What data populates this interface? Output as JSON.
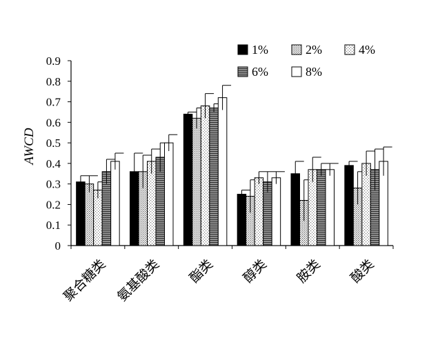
{
  "chart_data": {
    "type": "bar",
    "title": "",
    "xlabel": "",
    "ylabel": "AWCD",
    "ylim": [
      0,
      0.9
    ],
    "yticks": [
      "0",
      "0.1",
      "0.2",
      "0.3",
      "0.4",
      "0.5",
      "0.6",
      "0.7",
      "0.8",
      "0.9"
    ],
    "categories": [
      "聚合糖类",
      "氨基酸类",
      "酯类",
      "醇类",
      "胺类",
      "酸类"
    ],
    "legend_position": "top-right",
    "grid": false,
    "series": [
      {
        "name": "1%",
        "fill": "black",
        "values": [
          0.31,
          0.36,
          0.64,
          0.25,
          0.35,
          0.39
        ],
        "errors": [
          0.03,
          0.09,
          0.01,
          0.02,
          0.06,
          0.02
        ]
      },
      {
        "name": "2%",
        "fill": "dots-dense",
        "values": [
          0.3,
          0.36,
          0.62,
          0.24,
          0.22,
          0.28
        ],
        "errors": [
          0.04,
          0.08,
          0.05,
          0.08,
          0.1,
          0.08
        ]
      },
      {
        "name": "4%",
        "fill": "dots-sparse",
        "values": [
          0.27,
          0.41,
          0.68,
          0.33,
          0.37,
          0.4
        ],
        "errors": [
          0.04,
          0.06,
          0.06,
          0.03,
          0.06,
          0.06
        ]
      },
      {
        "name": "6%",
        "fill": "horizontal-lines",
        "values": [
          0.36,
          0.43,
          0.67,
          0.31,
          0.37,
          0.37
        ],
        "errors": [
          0.06,
          0.07,
          0.02,
          0.05,
          0.03,
          0.1
        ]
      },
      {
        "name": "8%",
        "fill": "white",
        "values": [
          0.41,
          0.5,
          0.72,
          0.33,
          0.37,
          0.41
        ],
        "errors": [
          0.04,
          0.04,
          0.06,
          0.03,
          0.03,
          0.07
        ]
      }
    ]
  }
}
